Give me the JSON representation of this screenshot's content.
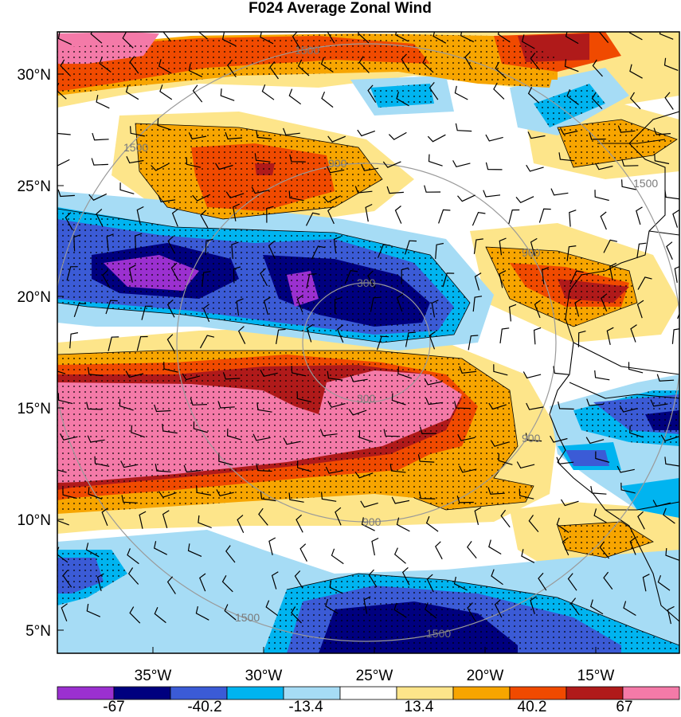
{
  "title": "F024 Average Zonal Wind",
  "lat_labels": [
    "30°N",
    "25°N",
    "20°N",
    "15°N",
    "10°N",
    "5°N"
  ],
  "lon_labels": [
    "35°W",
    "30°W",
    "25°W",
    "20°W",
    "15°W"
  ],
  "colorbar": {
    "colors": [
      "#9b30d0",
      "#00007f",
      "#3b5bd6",
      "#00b4f0",
      "#a6dcf5",
      "#ffffff",
      "#fde58a",
      "#f7a500",
      "#f04a00",
      "#b01a1a",
      "#f47aa8"
    ],
    "labels": [
      "-67",
      "-40.2",
      "-13.4",
      "13.4",
      "40.2",
      "67"
    ]
  },
  "range_ring_labels": [
    "300",
    "300",
    "900",
    "900",
    "900",
    "900",
    "1500",
    "1500",
    "1500",
    "1500",
    "1500"
  ],
  "colors": {
    "ring": "#9a9a9a",
    "coast": "#000000",
    "stipple": "#000000"
  }
}
